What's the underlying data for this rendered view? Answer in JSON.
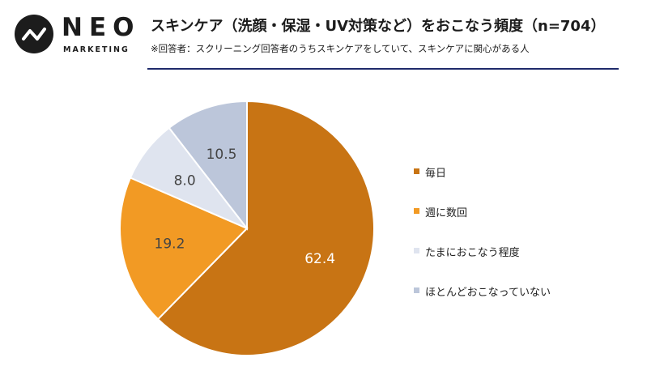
{
  "header": {
    "logo_text": "NEO",
    "logo_sub": "MARKETING",
    "title": "スキンケア（洗顔・保湿・UV対策など）をおこなう頻度（n=704）",
    "subtitle": "※回答者：スクリーニング回答者のうちスキンケアをしていて、スキンケアに関心がある人"
  },
  "chart_data": {
    "type": "pie",
    "start_angle_deg": 0,
    "direction": "clockwise",
    "legend_position": "right",
    "slices": [
      {
        "label": "毎日",
        "value": 62.4,
        "value_label": "62.4",
        "color": "#c87414",
        "label_color": "#ffffff"
      },
      {
        "label": "週に数回",
        "value": 19.2,
        "value_label": "19.2",
        "color": "#f29a24",
        "label_color": "#444444"
      },
      {
        "label": "たまにおこなう程度",
        "value": 8.0,
        "value_label": "8.0",
        "color": "#dfe4ef",
        "label_color": "#444444"
      },
      {
        "label": "ほとんどおこなっていない",
        "value": 10.5,
        "value_label": "10.5",
        "color": "#bcc6da",
        "label_color": "#444444"
      }
    ]
  }
}
